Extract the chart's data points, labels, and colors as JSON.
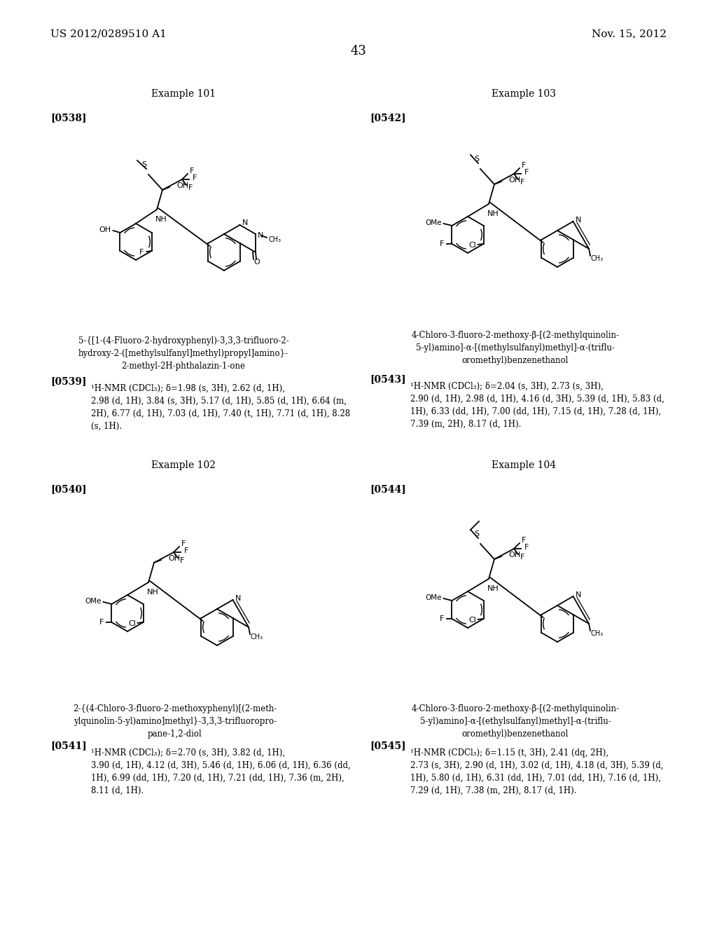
{
  "page_number": "43",
  "header_left": "US 2012/0289510 A1",
  "header_right": "Nov. 15, 2012",
  "background_color": "#ffffff",
  "text_color": "#000000",
  "sections": [
    {
      "example_title": "Example 101",
      "example_label": "[0538]",
      "example_col": "left",
      "compound_name": "5-{[1-(4-Fluoro-2-hydroxyphenyl)-3,3,3-trifluoro-2-\nhydroxy-2-([methylsulfanyl]methyl)propyl]amino}-\n2-methyl-2H-phthalazin-1-one",
      "nmr_label": "[0539]",
      "nmr_text": "¹H-NMR (CDCl₃); δ=1.98 (s, 3H), 2.62 (d, 1H), 2.98 (d, 1H), 3.84 (s, 3H), 5.17 (d, 1H), 5.85 (d, 1H), 6.64 (m, 2H), 6.77 (d, 1H), 7.03 (d, 1H), 7.40 (t, 1H), 7.71 (d, 1H), 8.28 (s, 1H)."
    },
    {
      "example_title": "Example 102",
      "example_label": "[0540]",
      "example_col": "left",
      "compound_name": "2-{(4-Chloro-3-fluoro-2-methoxyphenyl)[(2-meth-\nylquinolin-5-yl)amino]methyl}-3,3,3-trifluoropro-\npane-1,2-diol",
      "nmr_label": "[0541]",
      "nmr_text": "¹H-NMR (CDCl₃); δ=2.70 (s, 3H), 3.82 (d, 1H), 3.90 (d, 1H), 4.12 (d, 3H), 5.46 (d, 1H), 6.06 (d, 1H), 6.36 (dd, 1H), 6.99 (dd, 1H), 7.20 (d, 1H), 7.21 (dd, 1H), 7.36 (m, 2H), 8.11 (d, 1H)."
    },
    {
      "example_title": "Example 103",
      "example_label": "[0542]",
      "example_col": "right",
      "compound_name": "4-Chloro-3-fluoro-2-methoxy-β-[(2-methylquinolin-\n5-yl)amino]-α-[(methylsulfanyl)methyl]-α-(triflu-\noromethyl)benzenethanol",
      "nmr_label": "[0543]",
      "nmr_text": "¹H-NMR (CDCl₃); δ=2.04 (s, 3H), 2.73 (s, 3H), 2.90 (d, 1H), 2.98 (d, 1H), 4.16 (d, 3H), 5.39 (d, 1H), 5.83 (d, 1H), 6.33 (dd, 1H), 7.00 (dd, 1H), 7.15 (d, 1H), 7.28 (d, 1H), 7.39 (m, 2H), 8.17 (d, 1H)."
    },
    {
      "example_title": "Example 104",
      "example_label": "[0544]",
      "example_col": "right",
      "compound_name": "4-Chloro-3-fluoro-2-methoxy-β-[(2-methylquinolin-\n5-yl)amino]-α-[(ethylsulfanyl)methyl]-α-(triflu-\noromethyl)benzenethanol",
      "nmr_label": "[0545]",
      "nmr_text": "¹H-NMR (CDCl₃); δ=1.15 (t, 3H), 2.41 (dq, 2H), 2.73 (s, 3H), 2.90 (d, 1H), 3.02 (d, 1H), 4.18 (d, 3H), 5.39 (d, 1H), 5.80 (d, 1H), 6.31 (dd, 1H), 7.01 (dd, 1H), 7.16 (d, 1H), 7.29 (d, 1H), 7.38 (m, 2H), 8.17 (d, 1H)."
    }
  ]
}
